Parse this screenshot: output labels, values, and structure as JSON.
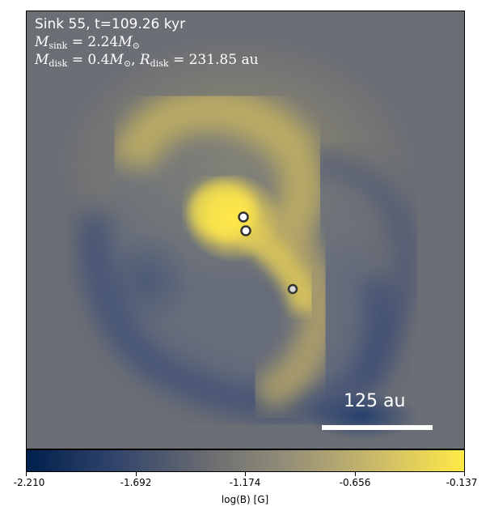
{
  "annotations": {
    "line1": "Sink 55, t=109.26 kyr",
    "m_sink_symbol": "M",
    "m_sink_sub": "sink",
    "m_sink_value": "= 2.24",
    "m_disk_symbol": "M",
    "m_disk_sub": "disk",
    "m_disk_value": "= 0.4",
    "r_disk_symbol": "R",
    "r_disk_sub": "disk",
    "r_disk_value": "= 231.85 au",
    "solar_symbol": "M",
    "solar_sub": "⊙"
  },
  "scale_bar": {
    "label": "125 au"
  },
  "colorbar": {
    "label": "log(B) [G]",
    "ticks": [
      "-2.210",
      "-1.692",
      "-1.174",
      "-0.656",
      "-0.137"
    ],
    "colors": [
      "#00204d",
      "#31446b",
      "#666970",
      "#958f78",
      "#cbba69",
      "#ffea46"
    ]
  },
  "sinks": [
    {
      "name": "sink-a"
    },
    {
      "name": "sink-b"
    },
    {
      "name": "sink-c"
    }
  ]
}
